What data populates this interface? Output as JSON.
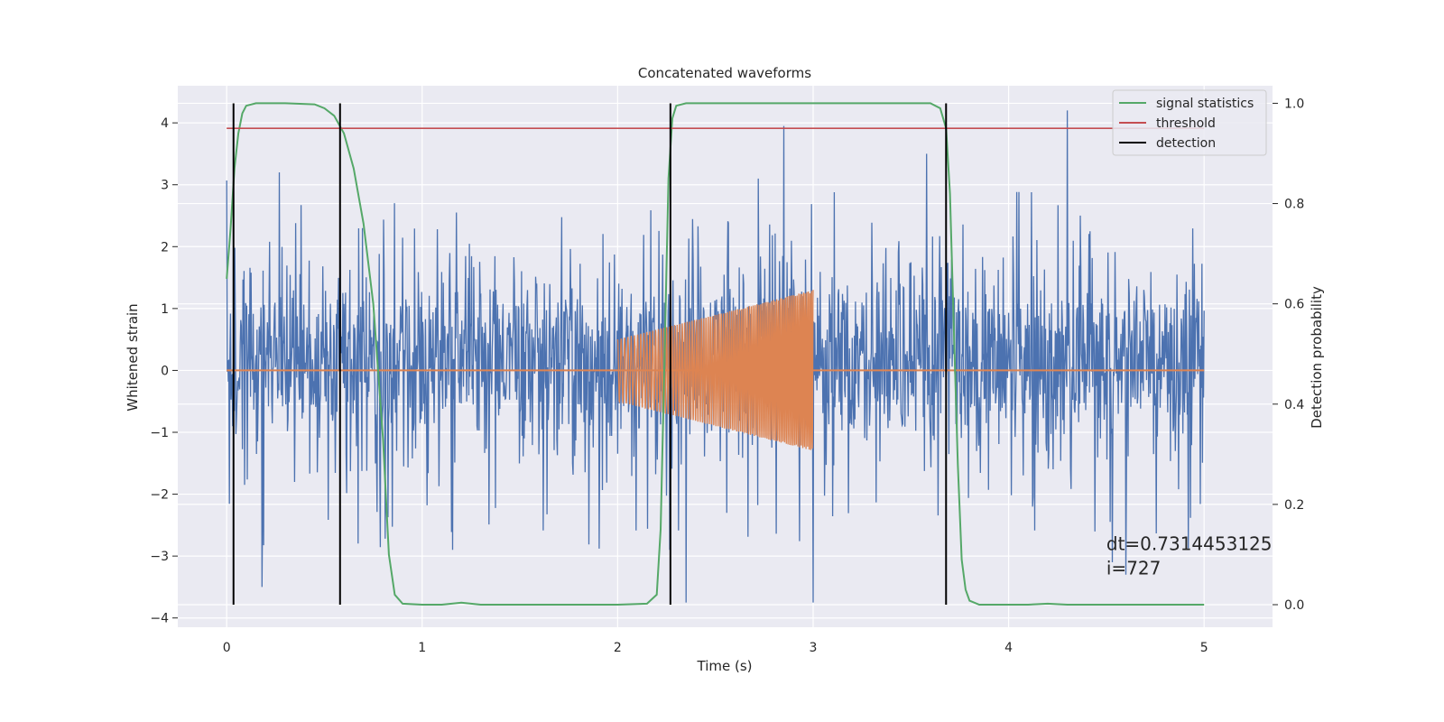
{
  "chart_data": {
    "type": "line",
    "title": "Concatenated waveforms",
    "xlabel": "Time (s)",
    "ylabel": "Whitened strain",
    "y2label": "Detection probability",
    "xlim": [
      -0.25,
      5.35
    ],
    "ylim": [
      -4.15,
      4.6
    ],
    "y2lim": [
      -0.045,
      1.035
    ],
    "xticks": [
      0,
      1,
      2,
      3,
      4,
      5
    ],
    "xtick_labels": [
      "0",
      "1",
      "2",
      "3",
      "4",
      "5"
    ],
    "yticks": [
      -4,
      -3,
      -2,
      -1,
      0,
      1,
      2,
      3,
      4
    ],
    "ytick_labels": [
      "−4",
      "−3",
      "−2",
      "−1",
      "0",
      "1",
      "2",
      "3",
      "4"
    ],
    "y2ticks": [
      0.0,
      0.2,
      0.4,
      0.6,
      0.8,
      1.0
    ],
    "y2tick_labels": [
      "0.0",
      "0.2",
      "0.4",
      "0.6",
      "0.8",
      "1.0"
    ],
    "grid": true,
    "legend_position": "top-right",
    "series": [
      {
        "name": "",
        "kind": "noise-strain",
        "color": "#4c72b0",
        "axis": "left",
        "x_range": [
          0,
          5
        ],
        "envelope": {
          "typical_max": 1.7,
          "typical_min": -1.3,
          "peak_max": 4.2,
          "peak_min": -3.8
        },
        "peaks": [
          {
            "x": 0.27,
            "y": 3.2
          },
          {
            "x": 2.72,
            "y": 3.1
          },
          {
            "x": 2.85,
            "y": 3.95
          },
          {
            "x": 3.58,
            "y": 3.5
          },
          {
            "x": 4.3,
            "y": 4.2
          },
          {
            "x": 0.18,
            "y": -3.5
          },
          {
            "x": 2.35,
            "y": -3.75
          },
          {
            "x": 3.0,
            "y": -3.75
          },
          {
            "x": 4.53,
            "y": -3.1
          },
          {
            "x": 4.6,
            "y": -3.3
          }
        ]
      },
      {
        "name": "",
        "kind": "chirp",
        "color": "#dd8452",
        "axis": "left",
        "x_range": [
          2,
          3
        ],
        "baseline": 0,
        "amplitude_start": 0.5,
        "amplitude_end": 1.3,
        "baseline_x_range": [
          0,
          5
        ]
      },
      {
        "name": "signal statistics",
        "color": "#55a868",
        "axis": "right",
        "points": [
          [
            0.0,
            0.65
          ],
          [
            0.02,
            0.75
          ],
          [
            0.04,
            0.87
          ],
          [
            0.06,
            0.94
          ],
          [
            0.08,
            0.98
          ],
          [
            0.1,
            0.995
          ],
          [
            0.15,
            1.0
          ],
          [
            0.3,
            1.0
          ],
          [
            0.45,
            0.998
          ],
          [
            0.5,
            0.99
          ],
          [
            0.55,
            0.975
          ],
          [
            0.6,
            0.94
          ],
          [
            0.65,
            0.87
          ],
          [
            0.7,
            0.76
          ],
          [
            0.75,
            0.6
          ],
          [
            0.8,
            0.33
          ],
          [
            0.83,
            0.1
          ],
          [
            0.86,
            0.02
          ],
          [
            0.9,
            0.002
          ],
          [
            1.0,
            0.0
          ],
          [
            1.1,
            0.0
          ],
          [
            1.2,
            0.004
          ],
          [
            1.3,
            0.0
          ],
          [
            1.5,
            0.0
          ],
          [
            2.0,
            0.0
          ],
          [
            2.15,
            0.002
          ],
          [
            2.2,
            0.02
          ],
          [
            2.22,
            0.15
          ],
          [
            2.24,
            0.5
          ],
          [
            2.26,
            0.85
          ],
          [
            2.28,
            0.97
          ],
          [
            2.3,
            0.995
          ],
          [
            2.35,
            1.0
          ],
          [
            3.0,
            1.0
          ],
          [
            3.6,
            1.0
          ],
          [
            3.65,
            0.99
          ],
          [
            3.68,
            0.95
          ],
          [
            3.7,
            0.82
          ],
          [
            3.72,
            0.55
          ],
          [
            3.74,
            0.28
          ],
          [
            3.76,
            0.09
          ],
          [
            3.78,
            0.03
          ],
          [
            3.8,
            0.008
          ],
          [
            3.85,
            0.0
          ],
          [
            4.1,
            0.0
          ],
          [
            4.2,
            0.002
          ],
          [
            4.3,
            0.0
          ],
          [
            5.0,
            0.0
          ]
        ]
      },
      {
        "name": "threshold",
        "color": "#c44e52",
        "axis": "right",
        "y": 0.95,
        "x_range": [
          0,
          5
        ]
      },
      {
        "name": "detection",
        "color": "#000000",
        "axis": "right",
        "x_positions": [
          0.035,
          0.58,
          2.27,
          3.68
        ],
        "y_range": [
          0.0,
          1.0
        ]
      }
    ],
    "annotations": [
      {
        "text": "dt=0.7314453125",
        "x": 4.5,
        "y": -2.9
      },
      {
        "text": " i=727",
        "x": 4.5,
        "y": -3.3
      }
    ]
  }
}
